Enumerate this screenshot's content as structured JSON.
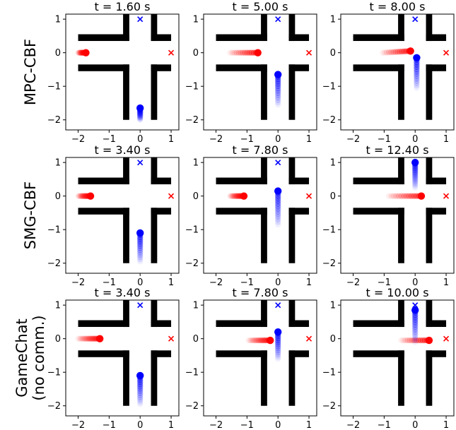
{
  "rows": [
    {
      "label_lines": [
        "MPC-CBF"
      ]
    },
    {
      "label_lines": [
        "SMG-CBF"
      ]
    },
    {
      "label_lines": [
        "GameChat",
        "(no comm.)"
      ]
    }
  ],
  "colors": {
    "walls": "#000000",
    "red_agent": "#ff0000",
    "blue_agent": "#0000ff",
    "red_goal": "#ff0000",
    "blue_goal": "#0000ff"
  },
  "axes": {
    "xlim": [
      -2.4,
      1.25
    ],
    "ylim": [
      -2.3,
      1.15
    ],
    "x_ticks": [
      -2,
      -1,
      0,
      1
    ],
    "y_ticks": [
      1,
      0,
      -1,
      -2
    ],
    "x_tick_labels": [
      "−2",
      "−1",
      "0",
      "1"
    ],
    "y_tick_labels": [
      "1",
      "0",
      "−1",
      "−2"
    ]
  },
  "chart_data": {
    "type": "scatter",
    "goals": {
      "red": [
        1.0,
        0.0
      ],
      "blue": [
        0.0,
        1.0
      ]
    },
    "panels": [
      {
        "title": "t = 1.60 s",
        "red": {
          "pos": [
            -1.75,
            0.0
          ],
          "trail_start": [
            -2.0,
            0.0
          ]
        },
        "blue": {
          "pos": [
            0.0,
            -1.65
          ],
          "trail_start": [
            0.0,
            -2.0
          ]
        }
      },
      {
        "title": "t = 5.00 s",
        "red": {
          "pos": [
            -0.65,
            0.0
          ],
          "trail_start": [
            -1.55,
            0.0
          ]
        },
        "blue": {
          "pos": [
            0.0,
            -0.65
          ],
          "trail_start": [
            0.0,
            -1.55
          ]
        }
      },
      {
        "title": "t = 8.00 s",
        "red": {
          "pos": [
            -0.15,
            0.05
          ],
          "trail_start": [
            -1.05,
            0.0
          ]
        },
        "blue": {
          "pos": [
            0.05,
            -0.15
          ],
          "trail_start": [
            0.05,
            -1.05
          ]
        }
      },
      {
        "title": "t = 3.40 s",
        "red": {
          "pos": [
            -1.6,
            0.0
          ],
          "trail_start": [
            -2.0,
            0.0
          ]
        },
        "blue": {
          "pos": [
            0.0,
            -1.1
          ],
          "trail_start": [
            0.0,
            -1.95
          ]
        }
      },
      {
        "title": "t = 7.80 s",
        "red": {
          "pos": [
            -1.1,
            0.0
          ],
          "trail_start": [
            -1.55,
            0.0
          ]
        },
        "blue": {
          "pos": [
            0.0,
            0.15
          ],
          "trail_start": [
            0.0,
            -0.85
          ]
        }
      },
      {
        "title": "t = 12.40 s",
        "red": {
          "pos": [
            0.2,
            0.0
          ],
          "trail_start": [
            -0.85,
            0.0
          ]
        },
        "blue": {
          "pos": [
            0.0,
            1.0
          ],
          "trail_start": [
            0.0,
            0.25
          ]
        }
      },
      {
        "title": "t = 3.40 s",
        "red": {
          "pos": [
            -1.3,
            0.0
          ],
          "trail_start": [
            -2.0,
            0.0
          ]
        },
        "blue": {
          "pos": [
            0.0,
            -1.1
          ],
          "trail_start": [
            0.0,
            -1.95
          ]
        }
      },
      {
        "title": "t = 7.80 s",
        "red": {
          "pos": [
            -0.25,
            -0.05
          ],
          "trail_start": [
            -0.95,
            -0.05
          ]
        },
        "blue": {
          "pos": [
            0.0,
            0.2
          ],
          "trail_start": [
            0.0,
            -0.6
          ]
        }
      },
      {
        "title": "t = 10.00 s",
        "red": {
          "pos": [
            0.45,
            -0.05
          ],
          "trail_start": [
            -0.45,
            -0.05
          ]
        },
        "blue": {
          "pos": [
            0.0,
            0.85
          ],
          "trail_start": [
            0.0,
            -0.1
          ]
        }
      }
    ]
  }
}
